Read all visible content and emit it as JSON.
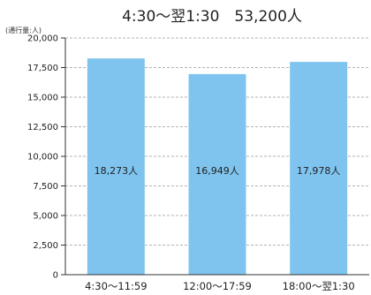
{
  "chart_data": {
    "type": "bar",
    "title": "4:30〜翌1:30　53,200人",
    "ylabel": "(通行量:人)",
    "xlabel": "",
    "categories": [
      "4:30〜11:59",
      "12:00〜17:59",
      "18:00〜翌1:30"
    ],
    "values": [
      18273,
      16949,
      17978
    ],
    "data_labels": [
      "18,273人",
      "16,949人",
      "17,978人"
    ],
    "ylim": [
      0,
      20000
    ],
    "yticks": [
      0,
      2500,
      5000,
      7500,
      10000,
      12500,
      15000,
      17500,
      20000
    ],
    "ytick_labels": [
      "0",
      "2,500",
      "5,000",
      "7,500",
      "10,000",
      "12,500",
      "15,000",
      "17,500",
      "20,000"
    ],
    "grid": true,
    "legend": "none",
    "colors": {
      "bar": "#7fc4ee",
      "grid": "#9a9a9a",
      "axis": "#333333"
    }
  }
}
